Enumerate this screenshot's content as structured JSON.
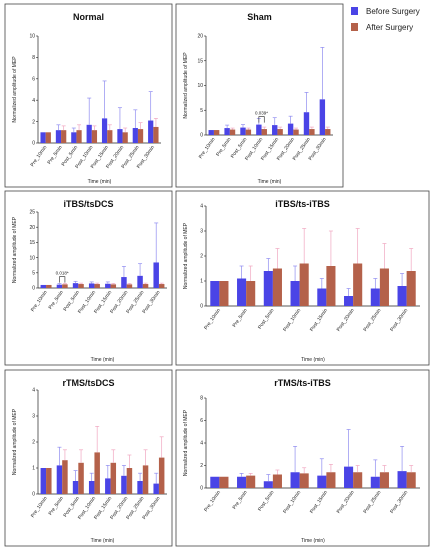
{
  "legend": {
    "before": "Before Surgery",
    "after": "After Surgery"
  },
  "colors": {
    "before": "#4a44e6",
    "after": "#b4614a",
    "err_before": "#8f8cf0",
    "err_after": "#f0a6c0"
  },
  "chart_data": [
    {
      "type": "bar",
      "title": "Normal",
      "xlabel": "Time (min)",
      "ylabel": "Normalized amplitude of MEP",
      "ylim": [
        0,
        10
      ],
      "yticks": [
        "0",
        "2",
        "4",
        "6",
        "8",
        "10"
      ],
      "categories": [
        "Pre_10min",
        "Pre_5min",
        "Post_5min",
        "Post_10min",
        "Post_15min",
        "Post_20min",
        "Post_25min",
        "Post_30min"
      ],
      "series": [
        {
          "name": "Before Surgery",
          "values": [
            1.0,
            1.2,
            1.0,
            1.7,
            2.3,
            1.3,
            1.4,
            2.1
          ],
          "err": [
            0.0,
            0.5,
            0.4,
            2.5,
            3.5,
            2.0,
            1.7,
            2.7
          ]
        },
        {
          "name": "After Surgery",
          "values": [
            1.0,
            1.2,
            1.2,
            1.2,
            1.2,
            1.0,
            1.3,
            1.5
          ],
          "err": [
            0.0,
            0.4,
            0.5,
            0.4,
            0.5,
            0.4,
            0.6,
            0.8
          ]
        }
      ]
    },
    {
      "type": "bar",
      "title": "Sham",
      "xlabel": "Time (min)",
      "ylabel": "Normalized amplitude of MEP",
      "ylim": [
        0,
        20
      ],
      "yticks": [
        "0",
        "5",
        "10",
        "15",
        "20"
      ],
      "categories": [
        "Pre_10min",
        "Pre_5min",
        "Post_5min",
        "Post_10min",
        "Post_15min",
        "Post_20min",
        "Post_25min",
        "Post_30min"
      ],
      "series": [
        {
          "name": "Before Surgery",
          "values": [
            1.0,
            1.4,
            1.5,
            2.1,
            2.0,
            2.3,
            4.6,
            7.2
          ],
          "err": [
            0.0,
            0.6,
            0.6,
            1.2,
            1.5,
            1.5,
            4.0,
            10.5
          ]
        },
        {
          "name": "After Surgery",
          "values": [
            1.0,
            1.1,
            1.1,
            1.2,
            1.2,
            1.1,
            1.2,
            1.2
          ],
          "err": [
            0.0,
            0.3,
            0.3,
            0.4,
            0.4,
            0.3,
            0.4,
            0.4
          ]
        }
      ],
      "annotation": {
        "text": "0.039*",
        "from": 3,
        "to": 3
      }
    },
    {
      "type": "bar",
      "title": "iTBS/tsDCS",
      "xlabel": "Time (min)",
      "ylabel": "Normalized amplitude of MEP",
      "ylim": [
        0,
        25
      ],
      "yticks": [
        "0",
        "5",
        "10",
        "15",
        "20",
        "25"
      ],
      "categories": [
        "Pre_10min",
        "Pre_5min",
        "Post_5min",
        "Post_10min",
        "Post_15min",
        "Post_20min",
        "Post_25min",
        "Post_30min"
      ],
      "series": [
        {
          "name": "Before Surgery",
          "values": [
            1.0,
            1.1,
            1.6,
            1.5,
            1.4,
            3.6,
            4.0,
            8.4
          ],
          "err": [
            0.0,
            0.4,
            0.6,
            0.5,
            0.6,
            3.5,
            4.0,
            13.0
          ]
        },
        {
          "name": "After Surgery",
          "values": [
            1.0,
            1.2,
            1.3,
            1.3,
            1.2,
            1.2,
            1.3,
            1.3
          ],
          "err": [
            0.0,
            0.3,
            0.3,
            0.3,
            0.3,
            0.3,
            0.3,
            0.3
          ]
        }
      ],
      "annotation": {
        "text": "0.018*",
        "from": 1,
        "to": 1
      }
    },
    {
      "type": "bar",
      "title": "iTBS/ts-iTBS",
      "xlabel": "Time (min)",
      "ylabel": "Normalized amplitude of MEP",
      "ylim": [
        0,
        4
      ],
      "yticks": [
        "0",
        "1",
        "2",
        "3",
        "4"
      ],
      "categories": [
        "Pre_10min",
        "Pre_5min",
        "Post_5min",
        "Post_10min",
        "Post_15min",
        "Post_20min",
        "Post_25min",
        "Post_30min"
      ],
      "series": [
        {
          "name": "Before Surgery",
          "values": [
            1.0,
            1.1,
            1.4,
            1.0,
            0.7,
            0.4,
            0.7,
            0.8
          ],
          "err": [
            0.0,
            0.5,
            0.5,
            0.6,
            0.4,
            0.3,
            0.4,
            0.5
          ]
        },
        {
          "name": "After Surgery",
          "values": [
            1.0,
            1.0,
            1.5,
            1.7,
            1.6,
            1.7,
            1.5,
            1.4
          ],
          "err": [
            0.0,
            0.6,
            0.8,
            1.4,
            1.4,
            1.4,
            1.0,
            0.9
          ]
        }
      ]
    },
    {
      "type": "bar",
      "title": "rTMS/tsDCS",
      "xlabel": "Time (min)",
      "ylabel": "Normalized amplitude of MEP",
      "ylim": [
        0,
        4
      ],
      "yticks": [
        "0",
        "1",
        "2",
        "3",
        "4"
      ],
      "categories": [
        "Pre_10min",
        "Pre_5min",
        "Post_5min",
        "Post_10min",
        "Post_15min",
        "Post_20min",
        "Post_25min",
        "Post_30min"
      ],
      "series": [
        {
          "name": "Before Surgery",
          "values": [
            1.0,
            1.1,
            0.5,
            0.5,
            0.6,
            0.7,
            0.5,
            0.4
          ],
          "err": [
            0.0,
            0.7,
            0.4,
            0.3,
            0.5,
            0.4,
            0.3,
            0.4
          ]
        },
        {
          "name": "After Surgery",
          "values": [
            1.0,
            1.3,
            1.2,
            1.6,
            1.2,
            1.0,
            1.1,
            1.4
          ],
          "err": [
            0.0,
            0.4,
            0.5,
            1.0,
            0.5,
            0.5,
            0.6,
            0.8
          ]
        }
      ]
    },
    {
      "type": "bar",
      "title": "rTMS/ts-iTBS",
      "xlabel": "Time (min)",
      "ylabel": "Normalized amplitude of MEP",
      "ylim": [
        0,
        8
      ],
      "yticks": [
        "0",
        "2",
        "4",
        "6",
        "8"
      ],
      "categories": [
        "Pre_10min",
        "Pre_5min",
        "Post_5min",
        "Post_10min",
        "Post_15min",
        "Post_20min",
        "Post_25min",
        "Post_30min"
      ],
      "series": [
        {
          "name": "Before Surgery",
          "values": [
            1.0,
            1.0,
            0.6,
            1.4,
            1.1,
            1.9,
            1.0,
            1.5
          ],
          "err": [
            0.0,
            0.3,
            0.6,
            2.3,
            1.5,
            3.3,
            1.5,
            2.2
          ]
        },
        {
          "name": "After Surgery",
          "values": [
            1.0,
            1.1,
            1.2,
            1.3,
            1.4,
            1.4,
            1.4,
            1.4
          ],
          "err": [
            0.0,
            0.2,
            0.4,
            0.5,
            0.7,
            0.6,
            0.6,
            0.6
          ]
        }
      ]
    }
  ]
}
